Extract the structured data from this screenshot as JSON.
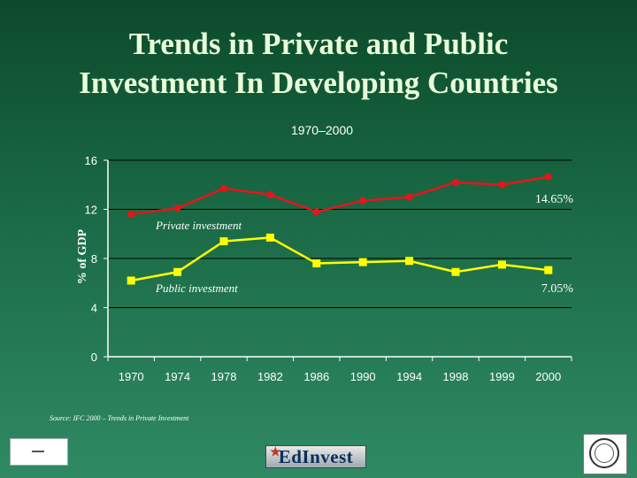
{
  "slide": {
    "title_line1": "Trends in Private and Public",
    "title_line2": "Investment In Developing Countries",
    "source": "Source: IFC 2000 – Trends in Private Investment",
    "logo_text": "EdInvest"
  },
  "chart_data": {
    "type": "line",
    "title": "1970–2000",
    "ylabel": "% of GDP",
    "xlabel": "",
    "categories": [
      "1970",
      "1974",
      "1978",
      "1982",
      "1986",
      "1990",
      "1994",
      "1998",
      "1999",
      "2000"
    ],
    "ylim": [
      0,
      16
    ],
    "yticks": [
      0,
      4,
      8,
      12,
      16
    ],
    "grid": true,
    "series": [
      {
        "name": "Private investment",
        "color": "#e8141b",
        "marker": "circle",
        "values": [
          11.6,
          12.1,
          13.7,
          13.2,
          11.8,
          12.7,
          13.0,
          14.2,
          14.0,
          14.65
        ],
        "end_label": "14.65%"
      },
      {
        "name": "Public investment",
        "color": "#ffff00",
        "marker": "square",
        "values": [
          6.2,
          6.9,
          9.4,
          9.7,
          7.6,
          7.7,
          7.8,
          6.9,
          7.5,
          7.05
        ],
        "end_label": "7.05%"
      }
    ],
    "colors": {
      "axis": "#ffffff",
      "grid": "#000000",
      "tick_text": "#ffffff",
      "label_text": "#ffffff"
    }
  }
}
